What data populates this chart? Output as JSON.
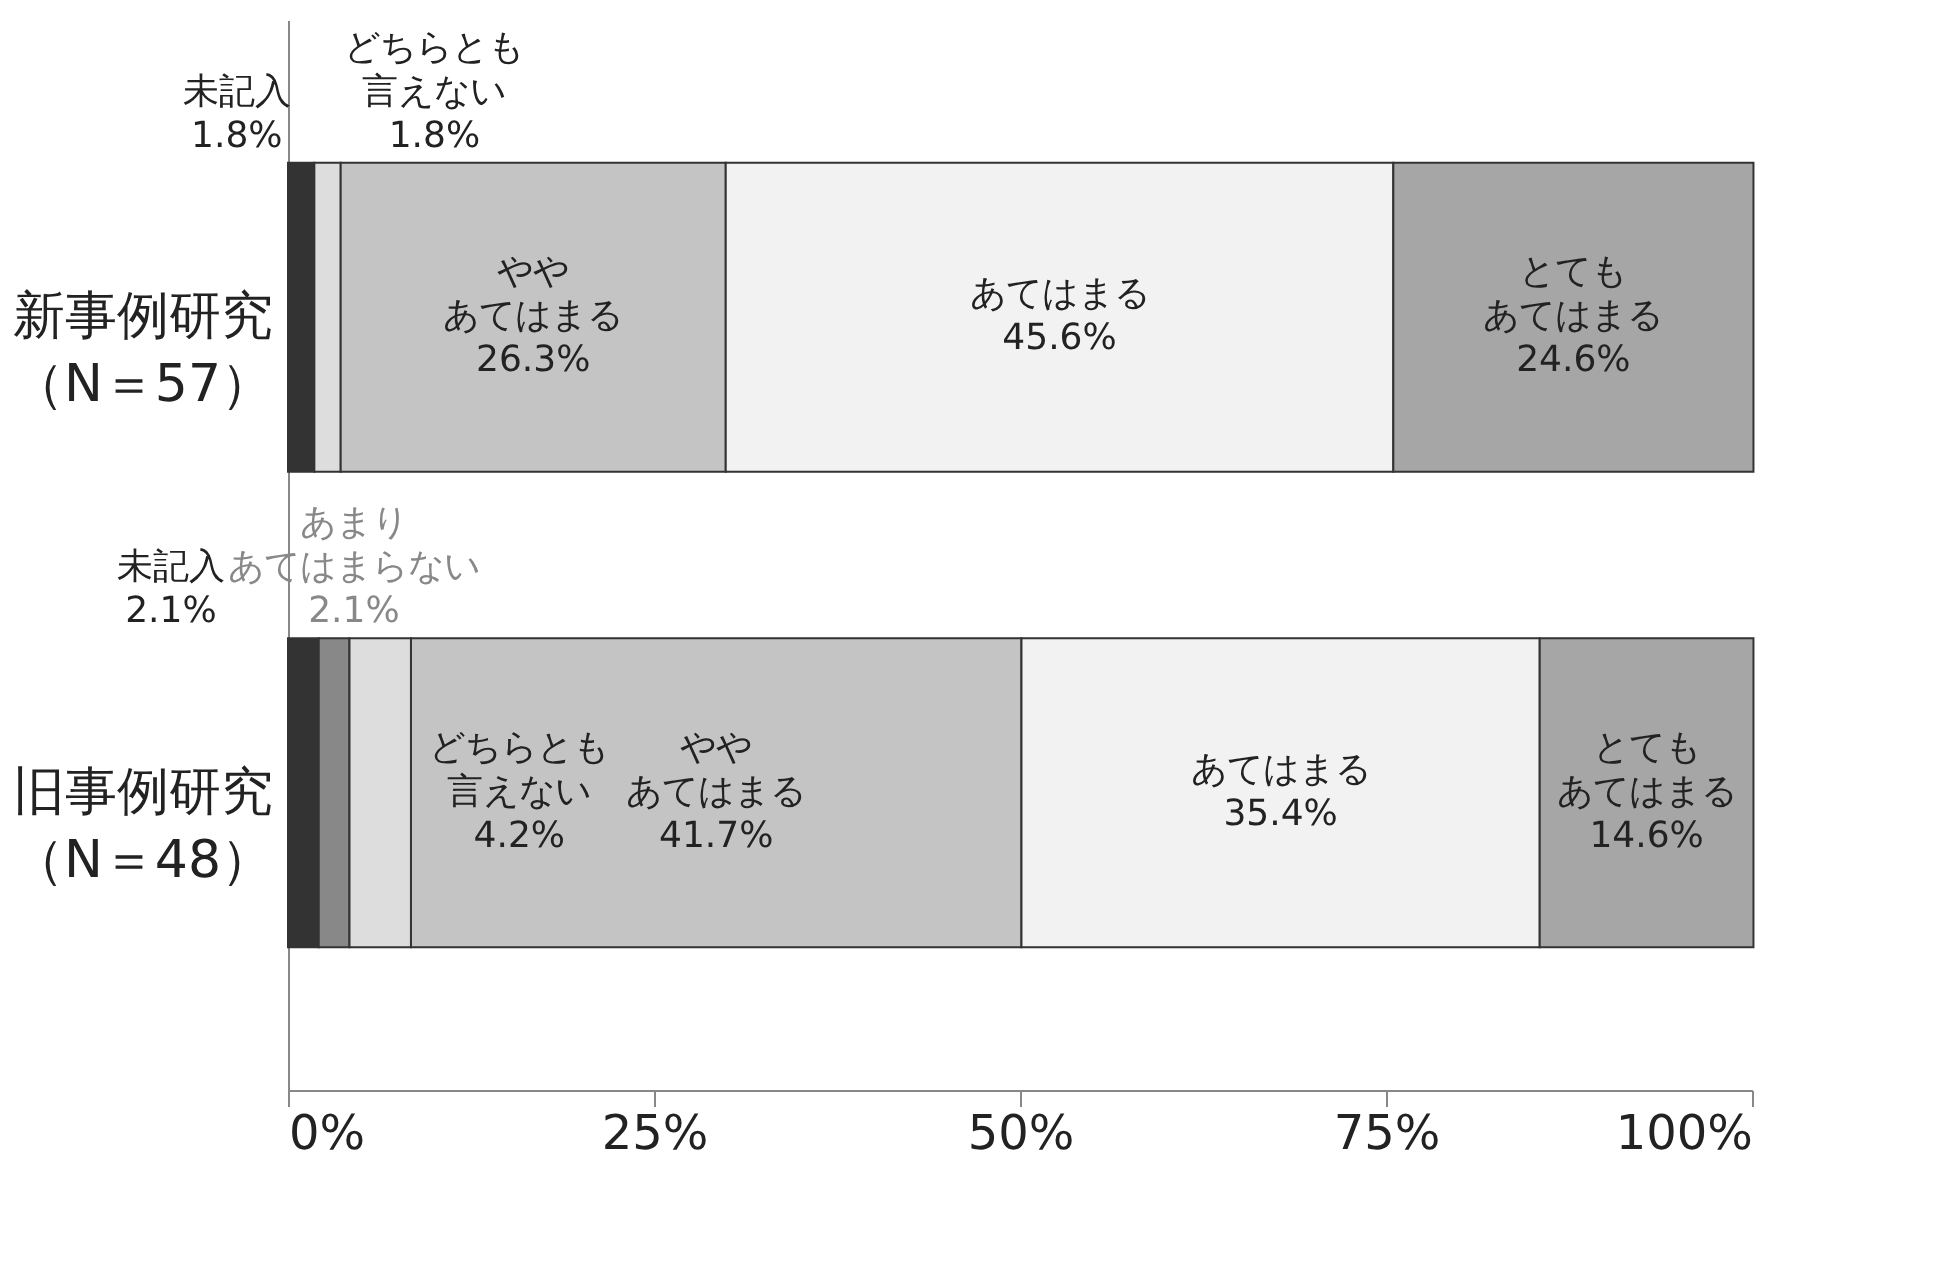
{
  "chart_data": {
    "type": "bar",
    "orientation": "horizontal",
    "stacked": true,
    "categories": [
      "新事例研究（N＝57）",
      "旧事例研究（N＝48）"
    ],
    "series": [
      {
        "name": "未記入",
        "color": "#333333",
        "values": [
          1.8,
          2.1
        ],
        "value_labels": [
          "1.8%",
          "2.1%"
        ]
      },
      {
        "name": "あまりあてはまらない",
        "color": "#888888",
        "values": [
          null,
          2.1
        ],
        "value_labels": [
          null,
          "2.1%"
        ]
      },
      {
        "name": "どちらとも言えない",
        "color": "#dddddd",
        "values": [
          1.8,
          4.2
        ],
        "value_labels": [
          "1.8%",
          "4.2%"
        ]
      },
      {
        "name": "ややあてはまる",
        "color": "#c4c4c4",
        "values": [
          26.3,
          41.7
        ],
        "value_labels": [
          "26.3%",
          "41.7%"
        ]
      },
      {
        "name": "あてはまる",
        "color": "#f2f2f2",
        "values": [
          45.6,
          35.4
        ],
        "value_labels": [
          "45.6%",
          "35.4%"
        ]
      },
      {
        "name": "とてもあてはまる",
        "color": "#a6a6a6",
        "values": [
          24.6,
          14.6
        ],
        "value_labels": [
          "24.6%",
          "14.6%"
        ]
      }
    ],
    "xlim": [
      0,
      100
    ],
    "xticks": [
      {
        "value": 0,
        "label": "0%"
      },
      {
        "value": 25,
        "label": "25%"
      },
      {
        "value": 50,
        "label": "50%"
      },
      {
        "value": 75,
        "label": "75%"
      },
      {
        "value": 100,
        "label": "100%"
      }
    ],
    "grid": false,
    "legend": false
  }
}
